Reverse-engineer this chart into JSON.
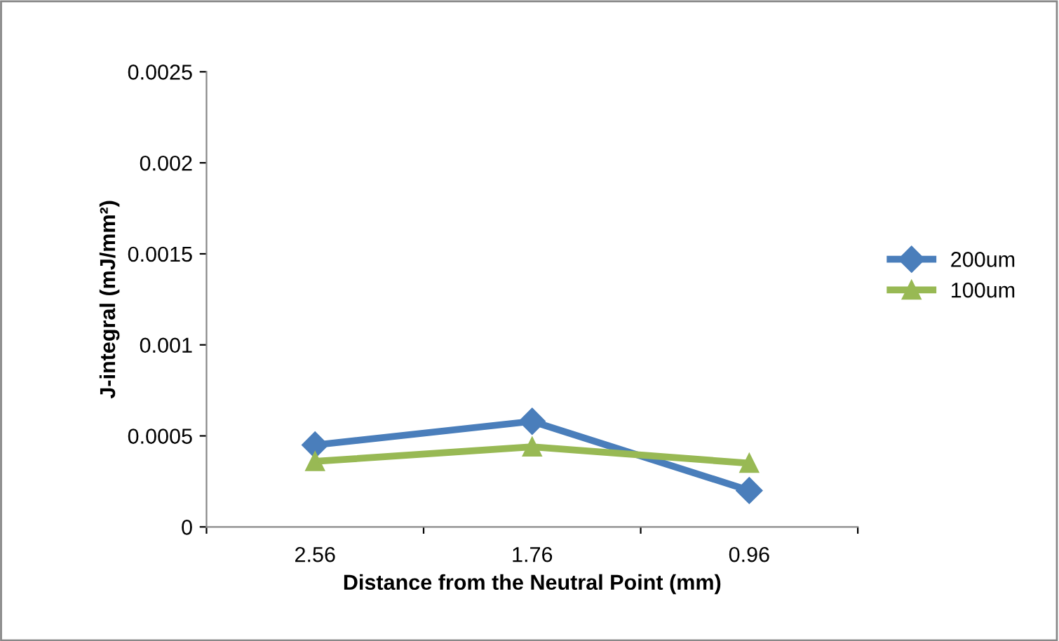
{
  "chart_data": {
    "type": "line",
    "xlabel": "Distance from the Neutral Point (mm)",
    "ylabel": "J-integral (mJ/mm²)",
    "categories": [
      "2.56",
      "1.76",
      "0.96"
    ],
    "series": [
      {
        "name": "200um",
        "color": "#4a7ebb",
        "marker": "diamond",
        "values": [
          0.00045,
          0.00058,
          0.0002
        ]
      },
      {
        "name": "100um",
        "color": "#98b954",
        "marker": "triangle",
        "values": [
          0.00036,
          0.00044,
          0.00035
        ]
      }
    ],
    "ylim": [
      0,
      0.0025
    ],
    "yticks": [
      0,
      0.0005,
      0.001,
      0.0015,
      0.002,
      0.0025
    ],
    "grid": false,
    "legend": "right"
  }
}
